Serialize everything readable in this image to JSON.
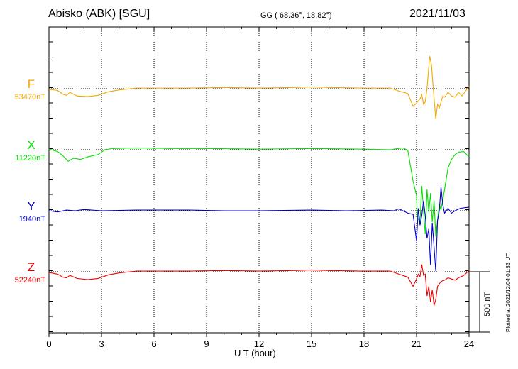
{
  "header": {
    "station": "Abisko (ABK)  [SGU]",
    "coords": "GG ( 68.36°,  18.82°)",
    "date": "2021/11/03"
  },
  "footnote": "Plotted at 2021/12/04 01:33 UT",
  "colors": {
    "F": "#f0a800",
    "X": "#00e000",
    "Y": "#0000cc",
    "Z": "#ee0000"
  },
  "chart_data": {
    "type": "line",
    "xlabel": "U T (hour)",
    "xlim": [
      0,
      24
    ],
    "x_ticks": [
      "0",
      "3",
      "6",
      "9",
      "12",
      "15",
      "18",
      "21",
      "24"
    ],
    "scale_bar": "500 nT",
    "series": [
      {
        "name": "F",
        "baseline": "53470nT",
        "points": [
          [
            0,
            -5
          ],
          [
            0.5,
            -15
          ],
          [
            0.8,
            -45
          ],
          [
            1.0,
            -55
          ],
          [
            1.2,
            -30
          ],
          [
            1.6,
            -60
          ],
          [
            2.2,
            -65
          ],
          [
            2.8,
            -55
          ],
          [
            3.4,
            -25
          ],
          [
            4.0,
            -10
          ],
          [
            5,
            5
          ],
          [
            6,
            5
          ],
          [
            8,
            5
          ],
          [
            10,
            10
          ],
          [
            12,
            5
          ],
          [
            14,
            10
          ],
          [
            15,
            15
          ],
          [
            16,
            10
          ],
          [
            18,
            5
          ],
          [
            19.5,
            5
          ],
          [
            20,
            -20
          ],
          [
            20.5,
            -40
          ],
          [
            20.8,
            -145
          ],
          [
            21.0,
            -120
          ],
          [
            21.2,
            -85
          ],
          [
            21.3,
            -50
          ],
          [
            21.4,
            -130
          ],
          [
            21.5,
            -110
          ],
          [
            21.6,
            0
          ],
          [
            21.75,
            270
          ],
          [
            21.85,
            200
          ],
          [
            22.0,
            -80
          ],
          [
            22.1,
            -250
          ],
          [
            22.2,
            -130
          ],
          [
            22.3,
            -160
          ],
          [
            22.5,
            -60
          ],
          [
            22.6,
            -70
          ],
          [
            22.8,
            -30
          ],
          [
            23.0,
            -60
          ],
          [
            23.2,
            -70
          ],
          [
            23.4,
            -30
          ],
          [
            23.6,
            -60
          ],
          [
            23.8,
            -20
          ],
          [
            24,
            20
          ]
        ]
      },
      {
        "name": "X",
        "baseline": "11220nT",
        "points": [
          [
            0,
            5
          ],
          [
            0.5,
            -15
          ],
          [
            0.8,
            -50
          ],
          [
            1.1,
            -95
          ],
          [
            1.4,
            -70
          ],
          [
            1.8,
            -80
          ],
          [
            2.2,
            -60
          ],
          [
            2.8,
            -40
          ],
          [
            3.2,
            0
          ],
          [
            3.6,
            10
          ],
          [
            5,
            15
          ],
          [
            7,
            10
          ],
          [
            9,
            10
          ],
          [
            12,
            5
          ],
          [
            15,
            10
          ],
          [
            18,
            5
          ],
          [
            19.5,
            0
          ],
          [
            20.2,
            15
          ],
          [
            20.5,
            -5
          ],
          [
            20.8,
            -260
          ],
          [
            21.0,
            -380
          ],
          [
            21.05,
            -560
          ],
          [
            21.2,
            -600
          ],
          [
            21.3,
            -300
          ],
          [
            21.4,
            -500
          ],
          [
            21.5,
            -700
          ],
          [
            21.6,
            -330
          ],
          [
            21.7,
            -520
          ],
          [
            21.8,
            -360
          ],
          [
            21.9,
            -600
          ],
          [
            22.0,
            -420
          ],
          [
            22.1,
            -720
          ],
          [
            22.3,
            -450
          ],
          [
            22.4,
            -500
          ],
          [
            22.6,
            -330
          ],
          [
            22.8,
            -150
          ],
          [
            23.0,
            -80
          ],
          [
            23.2,
            -40
          ],
          [
            23.4,
            -20
          ],
          [
            23.7,
            -15
          ],
          [
            24,
            -60
          ]
        ]
      },
      {
        "name": "Y",
        "baseline": "1940nT",
        "points": [
          [
            0,
            0
          ],
          [
            0.5,
            -10
          ],
          [
            1.0,
            5
          ],
          [
            1.5,
            0
          ],
          [
            2,
            10
          ],
          [
            3,
            0
          ],
          [
            5,
            5
          ],
          [
            8,
            5
          ],
          [
            10,
            0
          ],
          [
            12,
            0
          ],
          [
            15,
            5
          ],
          [
            17,
            0
          ],
          [
            19,
            5
          ],
          [
            19.7,
            0
          ],
          [
            20.0,
            15
          ],
          [
            20.5,
            -20
          ],
          [
            20.8,
            -30
          ],
          [
            21.0,
            -250
          ],
          [
            21.1,
            20
          ],
          [
            21.2,
            -120
          ],
          [
            21.3,
            -40
          ],
          [
            21.4,
            80
          ],
          [
            21.5,
            -40
          ],
          [
            21.6,
            -230
          ],
          [
            21.7,
            -150
          ],
          [
            21.8,
            -450
          ],
          [
            21.9,
            -100
          ],
          [
            22.0,
            -300
          ],
          [
            22.1,
            -500
          ],
          [
            22.2,
            -80
          ],
          [
            22.3,
            0
          ],
          [
            22.4,
            200
          ],
          [
            22.5,
            50
          ],
          [
            22.6,
            -20
          ],
          [
            22.8,
            20
          ],
          [
            23.0,
            -20
          ],
          [
            23.2,
            0
          ],
          [
            23.5,
            20
          ],
          [
            24,
            30
          ]
        ]
      },
      {
        "name": "Z",
        "baseline": "52240nT",
        "points": [
          [
            0,
            -5
          ],
          [
            0.5,
            -20
          ],
          [
            0.8,
            -45
          ],
          [
            1.0,
            -50
          ],
          [
            1.2,
            -30
          ],
          [
            1.6,
            -55
          ],
          [
            2.2,
            -65
          ],
          [
            2.8,
            -55
          ],
          [
            3.4,
            -25
          ],
          [
            4.0,
            -10
          ],
          [
            5,
            5
          ],
          [
            6,
            5
          ],
          [
            8,
            5
          ],
          [
            10,
            10
          ],
          [
            12,
            5
          ],
          [
            14,
            10
          ],
          [
            15,
            15
          ],
          [
            16,
            10
          ],
          [
            18,
            5
          ],
          [
            19.5,
            5
          ],
          [
            20,
            -20
          ],
          [
            20.5,
            -45
          ],
          [
            20.8,
            -120
          ],
          [
            21.0,
            -60
          ],
          [
            21.1,
            -20
          ],
          [
            21.2,
            -40
          ],
          [
            21.3,
            60
          ],
          [
            21.4,
            -30
          ],
          [
            21.5,
            -20
          ],
          [
            21.6,
            -200
          ],
          [
            21.7,
            -120
          ],
          [
            21.8,
            -250
          ],
          [
            21.9,
            -150
          ],
          [
            22.0,
            -280
          ],
          [
            22.1,
            -230
          ],
          [
            22.2,
            -120
          ],
          [
            22.4,
            -80
          ],
          [
            22.6,
            -70
          ],
          [
            22.8,
            -50
          ],
          [
            23.0,
            -60
          ],
          [
            23.2,
            -70
          ],
          [
            23.4,
            -50
          ],
          [
            23.7,
            -30
          ],
          [
            24,
            10
          ]
        ]
      }
    ]
  }
}
